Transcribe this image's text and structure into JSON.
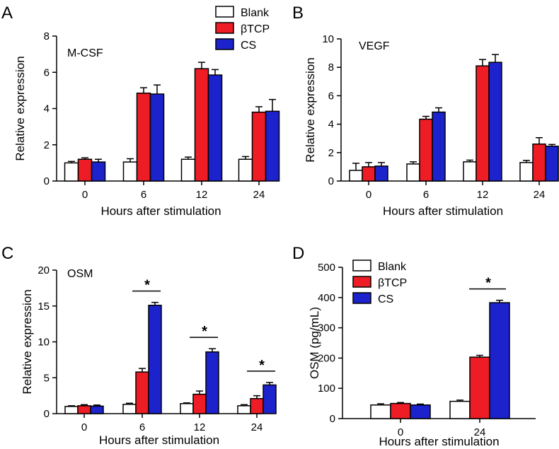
{
  "colors": {
    "Blank": "#ffffff",
    "βTCP": "#ee1c24",
    "CS": "#1c22cc",
    "axis": "#000000"
  },
  "chart_data": [
    {
      "panel": "A",
      "type": "bar",
      "title": "M-CSF",
      "xlabel": "Hours after stimulation",
      "ylabel": "Relative expression",
      "categories": [
        "0",
        "6",
        "12",
        "24"
      ],
      "ylim": [
        0,
        8
      ],
      "yticks": [
        0,
        2,
        4,
        6,
        8
      ],
      "legend": "top-right",
      "series": [
        {
          "name": "Blank",
          "values": [
            1.0,
            1.05,
            1.2,
            1.2
          ],
          "errors": [
            0.08,
            0.18,
            0.12,
            0.15
          ]
        },
        {
          "name": "βTCP",
          "values": [
            1.2,
            4.85,
            6.2,
            3.8
          ],
          "errors": [
            0.08,
            0.3,
            0.35,
            0.3
          ]
        },
        {
          "name": "CS",
          "values": [
            1.05,
            4.8,
            5.85,
            3.85
          ],
          "errors": [
            0.15,
            0.5,
            0.3,
            0.65
          ]
        }
      ],
      "significance": []
    },
    {
      "panel": "B",
      "type": "bar",
      "title": "VEGF",
      "xlabel": "Hours after stimulation",
      "ylabel": "Relative expression",
      "categories": [
        "0",
        "6",
        "12",
        "24"
      ],
      "ylim": [
        0,
        10
      ],
      "yticks": [
        0,
        2,
        4,
        6,
        8,
        10
      ],
      "series": [
        {
          "name": "Blank",
          "values": [
            0.75,
            1.2,
            1.35,
            1.3
          ],
          "errors": [
            0.5,
            0.15,
            0.12,
            0.15
          ]
        },
        {
          "name": "βTCP",
          "values": [
            1.0,
            4.35,
            8.1,
            2.6
          ],
          "errors": [
            0.3,
            0.2,
            0.45,
            0.45
          ]
        },
        {
          "name": "CS",
          "values": [
            1.05,
            4.85,
            8.35,
            2.45
          ],
          "errors": [
            0.25,
            0.3,
            0.55,
            0.12
          ]
        }
      ],
      "significance": []
    },
    {
      "panel": "C",
      "type": "bar",
      "title": "OSM",
      "xlabel": "Hours after stimulation",
      "ylabel": "Relative expression",
      "categories": [
        "0",
        "6",
        "12",
        "24"
      ],
      "ylim": [
        0,
        20
      ],
      "yticks": [
        0,
        5,
        10,
        15,
        20
      ],
      "series": [
        {
          "name": "Blank",
          "values": [
            1.0,
            1.3,
            1.4,
            1.1
          ],
          "errors": [
            0.1,
            0.15,
            0.1,
            0.15
          ]
        },
        {
          "name": "βTCP",
          "values": [
            1.1,
            5.8,
            2.7,
            2.1
          ],
          "errors": [
            0.15,
            0.5,
            0.45,
            0.4
          ]
        },
        {
          "name": "CS",
          "values": [
            1.05,
            15.1,
            8.6,
            4.0
          ],
          "errors": [
            0.15,
            0.4,
            0.45,
            0.35
          ]
        }
      ],
      "significance": [
        {
          "category": "6",
          "label": "*"
        },
        {
          "category": "12",
          "label": "*"
        },
        {
          "category": "24",
          "label": "*"
        }
      ]
    },
    {
      "panel": "D",
      "type": "bar",
      "title": "",
      "xlabel": "Hours after stimulation",
      "ylabel": "OSM (pg/mL)",
      "categories": [
        "0",
        "24"
      ],
      "ylim": [
        0,
        500
      ],
      "yticks": [
        0,
        100,
        200,
        300,
        400,
        500
      ],
      "legend": "top-left",
      "series": [
        {
          "name": "Blank",
          "values": [
            45,
            57
          ],
          "errors": [
            4,
            4
          ]
        },
        {
          "name": "βTCP",
          "values": [
            50,
            203
          ],
          "errors": [
            3,
            6
          ]
        },
        {
          "name": "CS",
          "values": [
            45,
            383
          ],
          "errors": [
            3,
            8
          ]
        }
      ],
      "significance": [
        {
          "category": "24",
          "label": "*"
        }
      ]
    }
  ]
}
